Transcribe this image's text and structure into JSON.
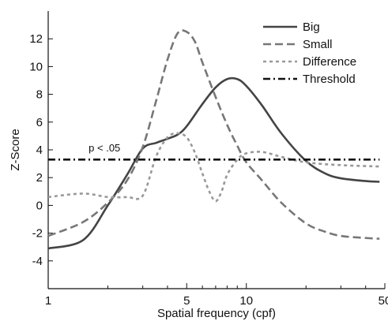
{
  "chart_data": {
    "type": "line",
    "xlabel": "Spatial frequency (cpf)",
    "ylabel": "Z-Score",
    "xscale": "log",
    "xlim": [
      1,
      50
    ],
    "ylim": [
      -6,
      14
    ],
    "xticks": [
      1,
      5,
      10,
      50
    ],
    "xminor": [
      2,
      3,
      4,
      6,
      7,
      8,
      9,
      20,
      30,
      40
    ],
    "yticks": [
      -4,
      -2,
      0,
      2,
      4,
      6,
      8,
      10,
      12
    ],
    "grid": false,
    "legend_position": "top-right",
    "annotation": {
      "text": "p < .05",
      "x": 1.6,
      "y": 3.9
    },
    "series": [
      {
        "name": "Big",
        "color": "#444444",
        "style": "solid",
        "x": [
          1,
          1.5,
          2,
          2.5,
          3,
          3.5,
          4,
          4.5,
          5,
          6,
          7,
          8,
          9,
          10,
          12,
          15,
          20,
          25,
          30,
          40,
          47
        ],
        "y": [
          -3.1,
          -2.5,
          0,
          2.2,
          4.1,
          4.5,
          4.8,
          5.1,
          5.7,
          7.3,
          8.5,
          9.1,
          9.1,
          8.6,
          7.2,
          5.2,
          3.2,
          2.3,
          1.95,
          1.75,
          1.7
        ]
      },
      {
        "name": "Small",
        "color": "#777777",
        "style": "dashed",
        "x": [
          1,
          1.5,
          2,
          2.5,
          3,
          3.5,
          4,
          4.5,
          5,
          5.5,
          6,
          7,
          8,
          9,
          10,
          12,
          15,
          20,
          25,
          30,
          40,
          47
        ],
        "y": [
          -2.2,
          -1.2,
          0.2,
          1.8,
          4.2,
          7.5,
          10.5,
          12.4,
          12.5,
          11.8,
          10.3,
          7.8,
          5.8,
          4.3,
          3.1,
          1.8,
          0.2,
          -1.3,
          -1.9,
          -2.2,
          -2.35,
          -2.4
        ]
      },
      {
        "name": "Difference",
        "color": "#999999",
        "style": "dotted",
        "x": [
          1,
          1.5,
          2,
          2.5,
          3,
          3.5,
          4,
          4.5,
          5,
          5.5,
          6,
          6.5,
          7,
          7.5,
          8,
          9,
          10,
          12,
          15,
          20,
          30,
          47
        ],
        "y": [
          0.6,
          0.85,
          0.6,
          0.6,
          0.7,
          3.5,
          4.9,
          5.2,
          4.9,
          3.8,
          2.3,
          1.0,
          0.3,
          1.0,
          2.2,
          3.3,
          3.75,
          3.85,
          3.5,
          3.1,
          2.9,
          2.8
        ]
      },
      {
        "name": "Threshold",
        "color": "#111111",
        "style": "dashdot",
        "x": [
          1,
          47
        ],
        "y": [
          3.3,
          3.3
        ]
      }
    ]
  }
}
